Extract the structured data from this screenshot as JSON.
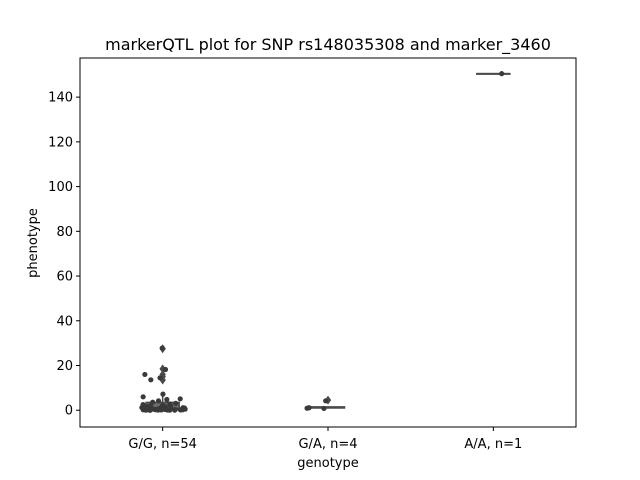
{
  "chart_data": {
    "type": "box-strip",
    "title": "markerQTL plot for SNP rs148035308 and marker_3460",
    "xlabel": "genotype",
    "ylabel": "phenotype",
    "categories": [
      "G/G, n=54",
      "G/A, n=4",
      "A/A, n=1"
    ],
    "ylim": [
      -7.5,
      157.5
    ],
    "yticks": [
      0,
      20,
      40,
      60,
      80,
      100,
      120,
      140
    ],
    "grid": false,
    "colors": {
      "points": "#3a3a3a",
      "box": "#4a4a4a",
      "axis": "#000000"
    },
    "boxes": [
      {
        "category": "G/G, n=54",
        "q1": 0.2,
        "median": 0.8,
        "q3": 3.5,
        "whisker_low": 0.0,
        "whisker_high": 7.5,
        "outliers": [
          27.5,
          18.5,
          16.0,
          15.0,
          13.5
        ]
      },
      {
        "category": "G/A, n=4",
        "q1": 1.0,
        "median": 1.2,
        "q3": 1.5,
        "whisker_low": 0.9,
        "whisker_high": 1.6,
        "outliers": [
          4.5
        ]
      },
      {
        "category": "A/A, n=1",
        "q1": 150.5,
        "median": 150.5,
        "q3": 150.5,
        "whisker_low": 150.5,
        "whisker_high": 150.5,
        "outliers": []
      }
    ],
    "points": [
      {
        "category": "G/G, n=54",
        "values": [
          27.8,
          18.2,
          16.0,
          13.6,
          14.5,
          7.2,
          6.0,
          5.1,
          4.8,
          4.2,
          3.6,
          3.1,
          2.8,
          2.5,
          2.2,
          2.0,
          1.8,
          1.6,
          1.5,
          1.4,
          1.3,
          1.2,
          1.1,
          1.0,
          0.95,
          0.9,
          0.85,
          0.8,
          0.75,
          0.7,
          0.65,
          0.6,
          0.55,
          0.5,
          0.45,
          0.4,
          0.38,
          0.35,
          0.32,
          0.3,
          0.28,
          0.25,
          0.22,
          0.2,
          0.18,
          0.15,
          0.12,
          0.1,
          0.08,
          0.06,
          0.05,
          0.04,
          0.02,
          0.0
        ]
      },
      {
        "category": "G/A, n=4",
        "values": [
          4.2,
          1.1,
          0.9,
          0.8
        ]
      },
      {
        "category": "A/A, n=1",
        "values": [
          150.5
        ]
      }
    ]
  }
}
